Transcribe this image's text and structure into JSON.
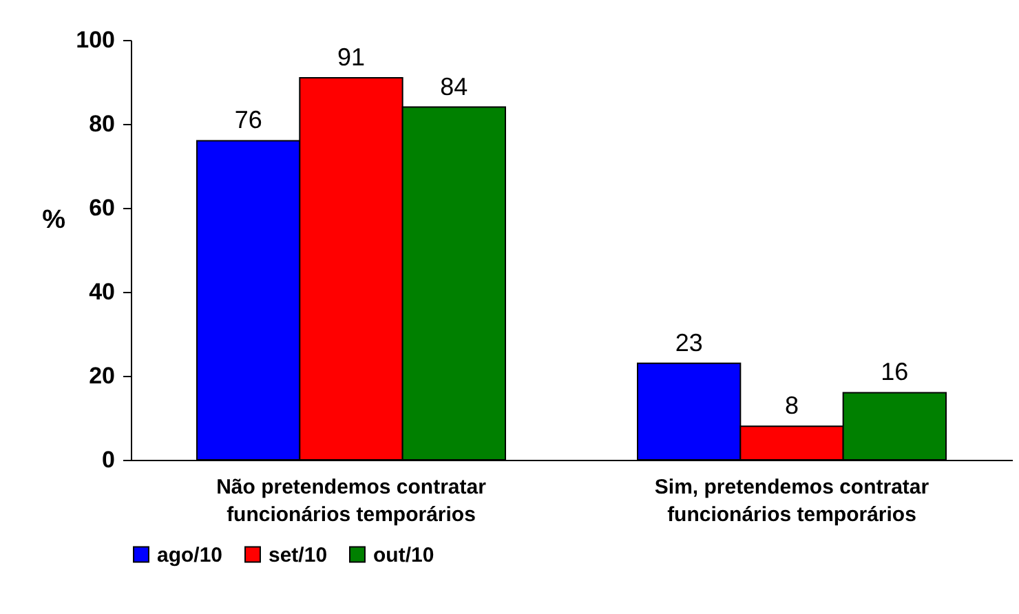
{
  "chart_data": {
    "type": "bar",
    "categories": [
      "Não pretendemos contratar funcionários temporários",
      "Sim, pretendemos contratar funcionários temporários"
    ],
    "series": [
      {
        "name": "ago/10",
        "color": "#0000ff",
        "values": [
          76,
          23
        ]
      },
      {
        "name": "set/10",
        "color": "#ff0000",
        "values": [
          91,
          8
        ]
      },
      {
        "name": "out/10",
        "color": "#008000",
        "values": [
          84,
          16
        ]
      }
    ],
    "ylabel": "%",
    "ylim": [
      0,
      100
    ],
    "yticks": [
      0,
      20,
      40,
      60,
      80,
      100
    ],
    "data_labels": true,
    "grid": false,
    "legend": "bottom"
  }
}
